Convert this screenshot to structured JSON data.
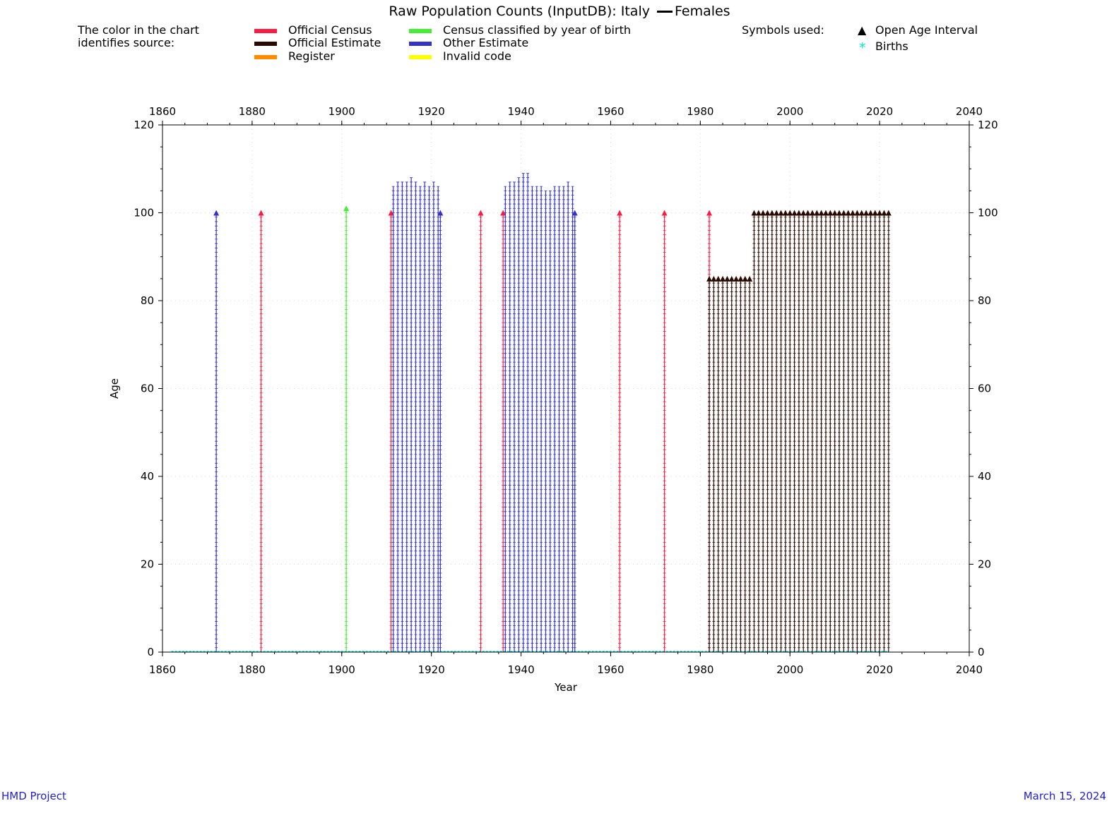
{
  "title": "Raw Population Counts (InputDB): Italy",
  "title_suffix": "Females",
  "legend": {
    "intro_line1": "The color in the chart",
    "intro_line2": "identifies source:",
    "sources": [
      {
        "label": "Official Census",
        "color": "#ff1a40"
      },
      {
        "label": "Official Estimate",
        "color": "#2a0a00"
      },
      {
        "label": "Register",
        "color": "#ff8c00"
      },
      {
        "label": "Census classified by year of birth",
        "color": "#44ee33"
      },
      {
        "label": "Other Estimate",
        "color": "#3333cc"
      },
      {
        "label": "Invalid code",
        "color": "#ffff00"
      }
    ],
    "symbols_heading": "Symbols used:",
    "symbols": [
      {
        "label": "Open Age Interval",
        "icon": "triangle-icon",
        "glyph": "▲",
        "color": "#000000"
      },
      {
        "label": "Births",
        "icon": "asterisk-icon",
        "glyph": "*",
        "color": "#00e5e5"
      }
    ]
  },
  "footer": {
    "left": "HMD Project",
    "right": "March 15, 2024"
  },
  "chart_data": {
    "type": "scatter",
    "xlabel": "Year",
    "ylabel": "Age",
    "xlim": [
      1860,
      2040
    ],
    "ylim": [
      0,
      120
    ],
    "x_ticks": [
      "1860",
      "1880",
      "1900",
      "1920",
      "1940",
      "1960",
      "1980",
      "2000",
      "2020",
      "2040"
    ],
    "y_ticks": [
      "0",
      "20",
      "40",
      "60",
      "80",
      "100",
      "120"
    ],
    "grid": true,
    "births": {
      "series": "Births",
      "color": "#00e5e5",
      "from": 1862,
      "to": 2022
    },
    "series": [
      {
        "source": "Other Estimate",
        "color": "#3333cc",
        "years": [
          1872
        ],
        "max_age": 100,
        "open_age": 100
      },
      {
        "source": "Official Census",
        "color": "#ff1a40",
        "years": [
          1882
        ],
        "max_age": 100,
        "open_age": 100
      },
      {
        "source": "Census classified by year of birth",
        "color": "#44ee33",
        "years": [
          1901
        ],
        "max_age": 101,
        "open_age": 101
      },
      {
        "source": "Official Census",
        "color": "#ff1a40",
        "years": [
          1911
        ],
        "max_age": 100,
        "open_age": 100
      },
      {
        "source": "Other Estimate",
        "color": "#3333cc",
        "years": [
          1911.5,
          1912.5,
          1913.5,
          1914.5,
          1915.5,
          1916.5,
          1917.5,
          1918.5,
          1919.5,
          1920.5,
          1921.5
        ],
        "max_ages": [
          106,
          107,
          107,
          107,
          108,
          107,
          106,
          107,
          106,
          107,
          106
        ]
      },
      {
        "source": "Other Estimate",
        "color": "#3333cc",
        "years": [
          1922
        ],
        "max_age": 100,
        "open_age": 100
      },
      {
        "source": "Official Census",
        "color": "#ff1a40",
        "years": [
          1931
        ],
        "max_age": 100,
        "open_age": 100
      },
      {
        "source": "Official Census",
        "color": "#ff1a40",
        "years": [
          1936
        ],
        "max_age": 100,
        "open_age": 100
      },
      {
        "source": "Other Estimate",
        "color": "#3333cc",
        "years": [
          1936.5,
          1937.5,
          1938.5,
          1939.5,
          1940.5,
          1941.5,
          1942.5,
          1943.5,
          1944.5,
          1945.5,
          1946.5,
          1947.5,
          1948.5,
          1949.5,
          1950.5,
          1951.5
        ],
        "max_ages": [
          106,
          107,
          107,
          108,
          109,
          109,
          106,
          106,
          106,
          105,
          105,
          106,
          106,
          106,
          107,
          106
        ]
      },
      {
        "source": "Other Estimate",
        "color": "#3333cc",
        "years": [
          1952
        ],
        "max_age": 100,
        "open_age": 100
      },
      {
        "source": "Official Census",
        "color": "#ff1a40",
        "years": [
          1962,
          1972,
          1982
        ],
        "max_age": 100,
        "open_age": 100
      },
      {
        "source": "Official Estimate",
        "color": "#2a0a00",
        "years": [
          1982,
          1983,
          1984,
          1985,
          1986,
          1987,
          1988,
          1989,
          1990,
          1991
        ],
        "max_age": 85,
        "open_age": 85
      },
      {
        "source": "Official Estimate",
        "color": "#2a0a00",
        "years": [
          1992,
          1993,
          1994,
          1995,
          1996,
          1997,
          1998,
          1999,
          2000,
          2001,
          2002,
          2003,
          2004,
          2005,
          2006,
          2007,
          2008,
          2009,
          2010,
          2011,
          2012,
          2013,
          2014,
          2015,
          2016,
          2017,
          2018,
          2019,
          2020,
          2021,
          2022
        ],
        "max_age": 100,
        "open_age": 100
      }
    ]
  }
}
